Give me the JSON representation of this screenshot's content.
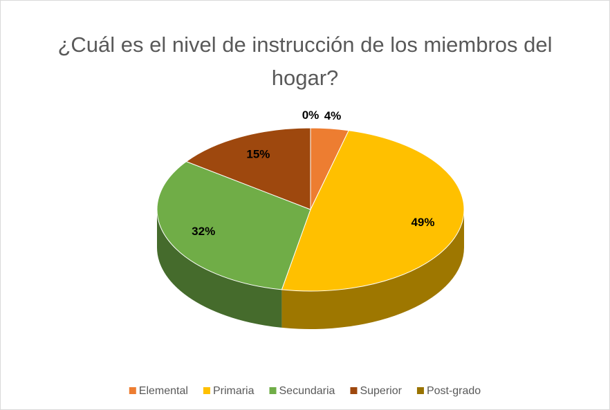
{
  "chart_data": {
    "type": "pie",
    "title": "¿Cuál es el nivel de instrucción de los miembros del hogar?",
    "categories": [
      "Elemental",
      "Primaria",
      "Secundaria",
      "Superior",
      "Post-grado"
    ],
    "values": [
      4,
      49,
      32,
      15,
      0
    ],
    "value_labels": [
      "4%",
      "49%",
      "32%",
      "15%",
      "0%"
    ],
    "colors": [
      "#ED7D31",
      "#FFC000",
      "#70AD47",
      "#9E480E",
      "#997300"
    ],
    "legend": "bottom"
  }
}
